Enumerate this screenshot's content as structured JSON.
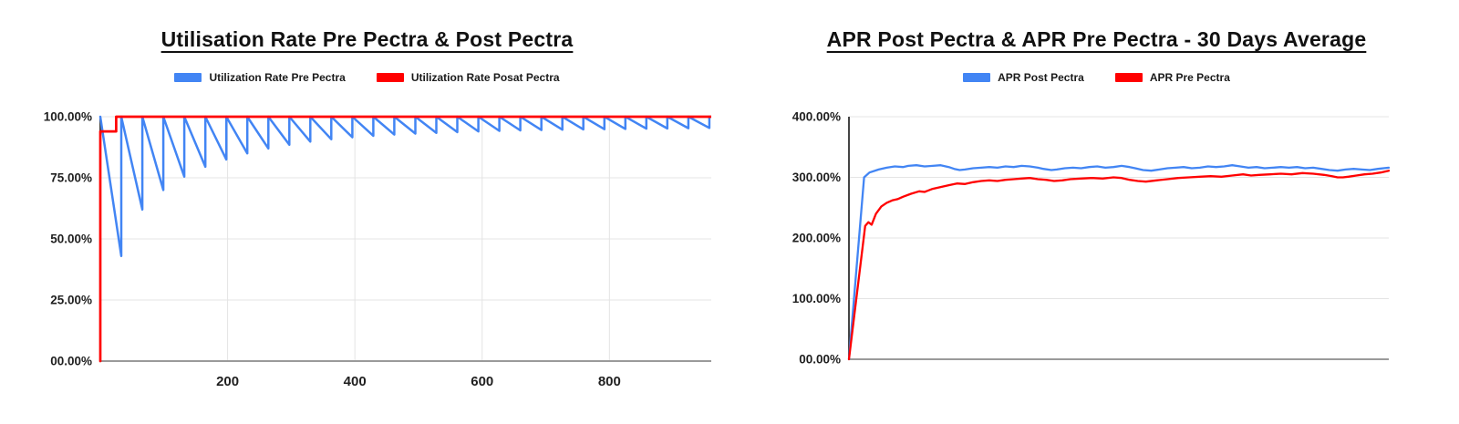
{
  "page": {
    "background": "#ffffff"
  },
  "chart_data": [
    {
      "type": "line",
      "title": "Utilisation Rate Pre Pectra & Post Pectra",
      "xlabel": "",
      "ylabel": "",
      "xlim": [
        0,
        960
      ],
      "ylim": [
        0,
        100
      ],
      "grid": {
        "horizontal": true,
        "vertical": true
      },
      "legend_position": "top",
      "x_ticks": [
        {
          "v": 200,
          "label": "200"
        },
        {
          "v": 400,
          "label": "400"
        },
        {
          "v": 600,
          "label": "600"
        },
        {
          "v": 800,
          "label": "800"
        }
      ],
      "y_ticks": [
        {
          "v": 0,
          "label": "00.00%"
        },
        {
          "v": 25,
          "label": "25.00%"
        },
        {
          "v": 50,
          "label": "50.00%"
        },
        {
          "v": 75,
          "label": "75.00%"
        },
        {
          "v": 100,
          "label": "100.00%"
        }
      ],
      "series": [
        {
          "name": "Utilization Rate Pre Pectra",
          "color": "#4285f4",
          "width": 2.5,
          "shape": "sawtooth",
          "start_y": 100,
          "peak": 100,
          "period": 33,
          "troughs": [
            43,
            62,
            70,
            75.5,
            79.5,
            82.5,
            85,
            87,
            88.5,
            89.8,
            90.8,
            91.6,
            92.2,
            92.7,
            93.1,
            93.4,
            93.7,
            94,
            94.2,
            94.4,
            94.55,
            94.7,
            94.8,
            94.9,
            95,
            95.1,
            95.2,
            95.3,
            95.4
          ]
        },
        {
          "name": "Utilization Rate Posat Pectra",
          "color": "#ff0000",
          "width": 2.7,
          "shape": "points",
          "points": [
            [
              0,
              0
            ],
            [
              0,
              94
            ],
            [
              25,
              94
            ],
            [
              25,
              100
            ],
            [
              960,
              100
            ]
          ]
        }
      ]
    },
    {
      "type": "line",
      "title": "APR Post Pectra & APR Pre Pectra - 30 Days Average",
      "xlabel": "",
      "ylabel": "",
      "xlim": [
        0,
        1000
      ],
      "ylim": [
        0,
        400
      ],
      "grid": {
        "horizontal": true,
        "vertical": false
      },
      "legend_position": "top",
      "x_ticks": [],
      "y_ticks": [
        {
          "v": 0,
          "label": "00.00%"
        },
        {
          "v": 100,
          "label": "100.00%"
        },
        {
          "v": 200,
          "label": "200.00%"
        },
        {
          "v": 300,
          "label": "300.00%"
        },
        {
          "v": 400,
          "label": "400.00%"
        }
      ],
      "series": [
        {
          "name": "APR Post Pectra",
          "color": "#4285f4",
          "width": 2.3,
          "shape": "points",
          "points": [
            [
              0,
              0
            ],
            [
              28,
              300
            ],
            [
              38,
              308
            ],
            [
              55,
              313
            ],
            [
              70,
              316
            ],
            [
              85,
              318
            ],
            [
              100,
              317
            ],
            [
              110,
              319
            ],
            [
              125,
              320
            ],
            [
              140,
              318
            ],
            [
              155,
              319
            ],
            [
              170,
              320
            ],
            [
              185,
              317
            ],
            [
              195,
              314
            ],
            [
              205,
              312
            ],
            [
              215,
              313
            ],
            [
              230,
              315
            ],
            [
              245,
              316
            ],
            [
              260,
              317
            ],
            [
              275,
              316
            ],
            [
              290,
              318
            ],
            [
              305,
              317
            ],
            [
              320,
              319
            ],
            [
              335,
              318
            ],
            [
              350,
              316
            ],
            [
              360,
              314
            ],
            [
              375,
              312
            ],
            [
              385,
              313
            ],
            [
              400,
              315
            ],
            [
              415,
              316
            ],
            [
              430,
              315
            ],
            [
              445,
              317
            ],
            [
              460,
              318
            ],
            [
              475,
              316
            ],
            [
              490,
              317
            ],
            [
              505,
              319
            ],
            [
              520,
              317
            ],
            [
              530,
              315
            ],
            [
              545,
              312
            ],
            [
              560,
              311
            ],
            [
              575,
              313
            ],
            [
              590,
              315
            ],
            [
              605,
              316
            ],
            [
              620,
              317
            ],
            [
              635,
              315
            ],
            [
              650,
              316
            ],
            [
              665,
              318
            ],
            [
              680,
              317
            ],
            [
              695,
              318
            ],
            [
              710,
              320
            ],
            [
              725,
              318
            ],
            [
              740,
              316
            ],
            [
              755,
              317
            ],
            [
              770,
              315
            ],
            [
              785,
              316
            ],
            [
              800,
              317
            ],
            [
              815,
              316
            ],
            [
              830,
              317
            ],
            [
              845,
              315
            ],
            [
              860,
              316
            ],
            [
              875,
              314
            ],
            [
              890,
              312
            ],
            [
              905,
              311
            ],
            [
              920,
              313
            ],
            [
              935,
              314
            ],
            [
              950,
              313
            ],
            [
              965,
              312
            ],
            [
              980,
              314
            ],
            [
              1000,
              316
            ]
          ]
        },
        {
          "name": "APR Pre Pectra",
          "color": "#ff0000",
          "width": 2.3,
          "shape": "points",
          "points": [
            [
              0,
              0
            ],
            [
              30,
              220
            ],
            [
              36,
              226
            ],
            [
              42,
              222
            ],
            [
              50,
              240
            ],
            [
              60,
              252
            ],
            [
              70,
              258
            ],
            [
              80,
              262
            ],
            [
              90,
              264
            ],
            [
              100,
              268
            ],
            [
              115,
              273
            ],
            [
              130,
              277
            ],
            [
              140,
              276
            ],
            [
              155,
              281
            ],
            [
              170,
              284
            ],
            [
              185,
              287
            ],
            [
              200,
              290
            ],
            [
              215,
              289
            ],
            [
              230,
              292
            ],
            [
              245,
              294
            ],
            [
              260,
              295
            ],
            [
              275,
              294
            ],
            [
              290,
              296
            ],
            [
              305,
              297
            ],
            [
              320,
              298
            ],
            [
              335,
              299
            ],
            [
              350,
              297
            ],
            [
              365,
              296
            ],
            [
              380,
              294
            ],
            [
              395,
              295
            ],
            [
              410,
              297
            ],
            [
              430,
              298
            ],
            [
              450,
              299
            ],
            [
              470,
              298
            ],
            [
              490,
              300
            ],
            [
              505,
              299
            ],
            [
              520,
              296
            ],
            [
              535,
              294
            ],
            [
              550,
              293
            ],
            [
              570,
              295
            ],
            [
              590,
              297
            ],
            [
              610,
              299
            ],
            [
              630,
              300
            ],
            [
              650,
              301
            ],
            [
              670,
              302
            ],
            [
              690,
              301
            ],
            [
              710,
              303
            ],
            [
              730,
              305
            ],
            [
              745,
              303
            ],
            [
              760,
              304
            ],
            [
              780,
              305
            ],
            [
              800,
              306
            ],
            [
              820,
              305
            ],
            [
              840,
              307
            ],
            [
              860,
              306
            ],
            [
              880,
              304
            ],
            [
              895,
              302
            ],
            [
              905,
              300
            ],
            [
              915,
              300
            ],
            [
              925,
              301
            ],
            [
              940,
              303
            ],
            [
              955,
              305
            ],
            [
              970,
              306
            ],
            [
              985,
              308
            ],
            [
              1000,
              311
            ]
          ]
        }
      ]
    }
  ]
}
